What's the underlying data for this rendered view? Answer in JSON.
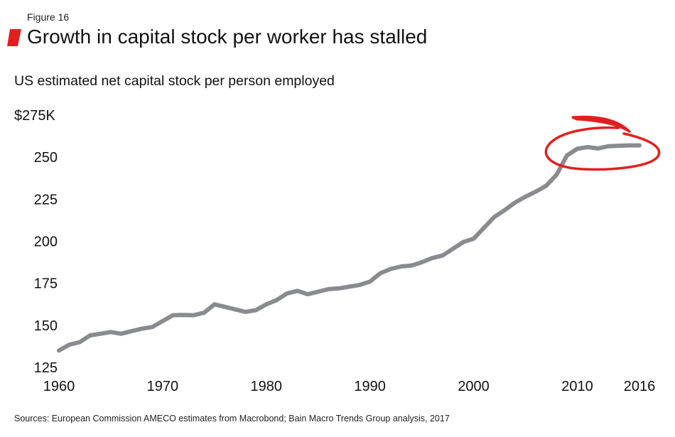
{
  "figure_label": "Figure 16",
  "accent_color": "#e0201f",
  "line_color": "#8a8b8f",
  "source": "Sources: European Commission AMECO estimates from Macrobond; Bain Macro Trends Group analysis, 2017",
  "chart_data": {
    "type": "line",
    "title": "Growth in capital stock per worker has stalled",
    "subtitle": "US estimated net capital stock per person employed",
    "ylim": [
      125,
      275
    ],
    "xlim": [
      1960,
      2016
    ],
    "y_ticks": [
      {
        "value": 275,
        "label": "$275K"
      },
      {
        "value": 250,
        "label": "250"
      },
      {
        "value": 225,
        "label": "225"
      },
      {
        "value": 200,
        "label": "200"
      },
      {
        "value": 175,
        "label": "175"
      },
      {
        "value": 150,
        "label": "150"
      },
      {
        "value": 125,
        "label": "125"
      }
    ],
    "x_ticks": [
      {
        "value": 1960,
        "label": "1960"
      },
      {
        "value": 1970,
        "label": "1970"
      },
      {
        "value": 1980,
        "label": "1980"
      },
      {
        "value": 1990,
        "label": "1990"
      },
      {
        "value": 2000,
        "label": "2000"
      },
      {
        "value": 2010,
        "label": "2010"
      },
      {
        "value": 2016,
        "label": "2016"
      }
    ],
    "grid": false,
    "x": [
      1960,
      1961,
      1962,
      1963,
      1964,
      1965,
      1966,
      1967,
      1968,
      1969,
      1970,
      1971,
      1972,
      1973,
      1974,
      1975,
      1976,
      1977,
      1978,
      1979,
      1980,
      1981,
      1982,
      1983,
      1984,
      1985,
      1986,
      1987,
      1988,
      1989,
      1990,
      1991,
      1992,
      1993,
      1994,
      1995,
      1996,
      1997,
      1998,
      1999,
      2000,
      2001,
      2002,
      2003,
      2004,
      2005,
      2006,
      2007,
      2008,
      2009,
      2010,
      2011,
      2012,
      2013,
      2014,
      2015,
      2016
    ],
    "values": [
      135,
      138.5,
      140,
      144,
      145,
      146,
      145,
      146.5,
      148,
      149,
      152.5,
      156,
      156.2,
      156,
      157.5,
      162.5,
      161,
      159.5,
      158,
      159,
      162.5,
      165,
      169,
      170.5,
      168.5,
      170,
      171.5,
      172,
      173,
      174,
      176,
      181,
      183.5,
      185,
      185.5,
      187.5,
      190,
      191.5,
      195.5,
      199.5,
      201.5,
      208,
      214.5,
      218.5,
      223,
      226.5,
      229.5,
      233,
      239.5,
      251,
      255,
      256,
      255.2,
      256.5,
      256.8,
      257,
      257
    ]
  }
}
